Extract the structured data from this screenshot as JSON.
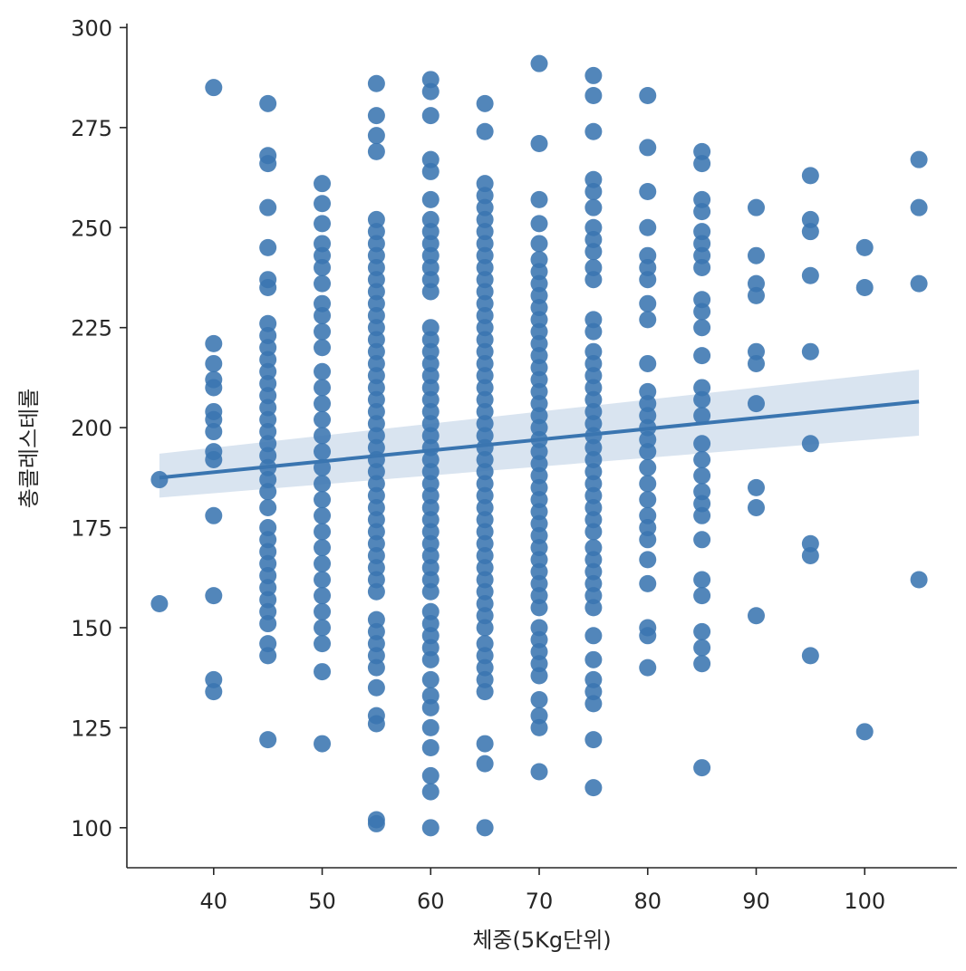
{
  "chart_data": {
    "type": "scatter",
    "title": "",
    "xlabel": "체중(5Kg단위)",
    "ylabel": "총콜레스테롤",
    "xlim": [
      32,
      108.5
    ],
    "ylim": [
      90,
      301
    ],
    "xticks": [
      40,
      50,
      60,
      70,
      80,
      90,
      100
    ],
    "yticks": [
      100,
      125,
      150,
      175,
      200,
      225,
      250,
      275,
      300
    ],
    "grid": false,
    "legend": "none",
    "colors": {
      "points": "#3a75b0",
      "line": "#3a75b0",
      "band": "#c9d8ea",
      "axis": "#262626"
    },
    "regression": {
      "x": [
        35,
        105
      ],
      "y": [
        187.5,
        206.5
      ],
      "ci_low": [
        182.5,
        198
      ],
      "ci_high": [
        193.5,
        214.5
      ]
    },
    "points": [
      [
        35,
        187
      ],
      [
        35,
        156
      ],
      [
        40,
        285
      ],
      [
        40,
        221
      ],
      [
        40,
        216
      ],
      [
        40,
        212
      ],
      [
        40,
        210
      ],
      [
        40,
        204
      ],
      [
        40,
        202
      ],
      [
        40,
        199
      ],
      [
        40,
        194
      ],
      [
        40,
        192
      ],
      [
        40,
        178
      ],
      [
        40,
        158
      ],
      [
        40,
        137
      ],
      [
        40,
        134
      ],
      [
        45,
        281
      ],
      [
        45,
        268
      ],
      [
        45,
        266
      ],
      [
        45,
        255
      ],
      [
        45,
        245
      ],
      [
        45,
        237
      ],
      [
        45,
        235
      ],
      [
        45,
        226
      ],
      [
        45,
        223
      ],
      [
        45,
        220
      ],
      [
        45,
        217
      ],
      [
        45,
        214
      ],
      [
        45,
        211
      ],
      [
        45,
        208
      ],
      [
        45,
        205
      ],
      [
        45,
        202
      ],
      [
        45,
        199
      ],
      [
        45,
        196
      ],
      [
        45,
        193
      ],
      [
        45,
        190
      ],
      [
        45,
        187
      ],
      [
        45,
        184
      ],
      [
        45,
        180
      ],
      [
        45,
        175
      ],
      [
        45,
        172
      ],
      [
        45,
        169
      ],
      [
        45,
        166
      ],
      [
        45,
        163
      ],
      [
        45,
        160
      ],
      [
        45,
        157
      ],
      [
        45,
        154
      ],
      [
        45,
        151
      ],
      [
        45,
        146
      ],
      [
        45,
        143
      ],
      [
        45,
        122
      ],
      [
        50,
        261
      ],
      [
        50,
        256
      ],
      [
        50,
        251
      ],
      [
        50,
        246
      ],
      [
        50,
        243
      ],
      [
        50,
        240
      ],
      [
        50,
        236
      ],
      [
        50,
        231
      ],
      [
        50,
        228
      ],
      [
        50,
        224
      ],
      [
        50,
        220
      ],
      [
        50,
        214
      ],
      [
        50,
        210
      ],
      [
        50,
        206
      ],
      [
        50,
        202
      ],
      [
        50,
        198
      ],
      [
        50,
        194
      ],
      [
        50,
        190
      ],
      [
        50,
        186
      ],
      [
        50,
        182
      ],
      [
        50,
        178
      ],
      [
        50,
        174
      ],
      [
        50,
        170
      ],
      [
        50,
        166
      ],
      [
        50,
        162
      ],
      [
        50,
        158
      ],
      [
        50,
        154
      ],
      [
        50,
        150
      ],
      [
        50,
        146
      ],
      [
        50,
        139
      ],
      [
        50,
        121
      ],
      [
        55,
        286
      ],
      [
        55,
        278
      ],
      [
        55,
        273
      ],
      [
        55,
        269
      ],
      [
        55,
        252
      ],
      [
        55,
        249
      ],
      [
        55,
        246
      ],
      [
        55,
        243
      ],
      [
        55,
        240
      ],
      [
        55,
        237
      ],
      [
        55,
        234
      ],
      [
        55,
        231
      ],
      [
        55,
        228
      ],
      [
        55,
        225
      ],
      [
        55,
        222
      ],
      [
        55,
        219
      ],
      [
        55,
        216
      ],
      [
        55,
        213
      ],
      [
        55,
        210
      ],
      [
        55,
        207
      ],
      [
        55,
        204
      ],
      [
        55,
        201
      ],
      [
        55,
        198
      ],
      [
        55,
        195
      ],
      [
        55,
        192
      ],
      [
        55,
        189
      ],
      [
        55,
        186
      ],
      [
        55,
        183
      ],
      [
        55,
        180
      ],
      [
        55,
        177
      ],
      [
        55,
        174
      ],
      [
        55,
        171
      ],
      [
        55,
        168
      ],
      [
        55,
        165
      ],
      [
        55,
        162
      ],
      [
        55,
        159
      ],
      [
        55,
        152
      ],
      [
        55,
        149
      ],
      [
        55,
        146
      ],
      [
        55,
        143
      ],
      [
        55,
        140
      ],
      [
        55,
        135
      ],
      [
        55,
        128
      ],
      [
        55,
        126
      ],
      [
        55,
        102
      ],
      [
        55,
        101
      ],
      [
        60,
        287
      ],
      [
        60,
        284
      ],
      [
        60,
        278
      ],
      [
        60,
        267
      ],
      [
        60,
        264
      ],
      [
        60,
        257
      ],
      [
        60,
        252
      ],
      [
        60,
        249
      ],
      [
        60,
        246
      ],
      [
        60,
        243
      ],
      [
        60,
        240
      ],
      [
        60,
        237
      ],
      [
        60,
        234
      ],
      [
        60,
        225
      ],
      [
        60,
        222
      ],
      [
        60,
        219
      ],
      [
        60,
        216
      ],
      [
        60,
        213
      ],
      [
        60,
        210
      ],
      [
        60,
        207
      ],
      [
        60,
        204
      ],
      [
        60,
        201
      ],
      [
        60,
        198
      ],
      [
        60,
        195
      ],
      [
        60,
        192
      ],
      [
        60,
        189
      ],
      [
        60,
        186
      ],
      [
        60,
        183
      ],
      [
        60,
        180
      ],
      [
        60,
        177
      ],
      [
        60,
        174
      ],
      [
        60,
        171
      ],
      [
        60,
        168
      ],
      [
        60,
        165
      ],
      [
        60,
        162
      ],
      [
        60,
        159
      ],
      [
        60,
        154
      ],
      [
        60,
        151
      ],
      [
        60,
        148
      ],
      [
        60,
        145
      ],
      [
        60,
        142
      ],
      [
        60,
        137
      ],
      [
        60,
        133
      ],
      [
        60,
        130
      ],
      [
        60,
        125
      ],
      [
        60,
        120
      ],
      [
        60,
        113
      ],
      [
        60,
        109
      ],
      [
        60,
        100
      ],
      [
        65,
        281
      ],
      [
        65,
        274
      ],
      [
        65,
        261
      ],
      [
        65,
        258
      ],
      [
        65,
        255
      ],
      [
        65,
        252
      ],
      [
        65,
        249
      ],
      [
        65,
        246
      ],
      [
        65,
        243
      ],
      [
        65,
        240
      ],
      [
        65,
        237
      ],
      [
        65,
        234
      ],
      [
        65,
        231
      ],
      [
        65,
        228
      ],
      [
        65,
        225
      ],
      [
        65,
        222
      ],
      [
        65,
        219
      ],
      [
        65,
        216
      ],
      [
        65,
        213
      ],
      [
        65,
        210
      ],
      [
        65,
        207
      ],
      [
        65,
        204
      ],
      [
        65,
        201
      ],
      [
        65,
        198
      ],
      [
        65,
        195
      ],
      [
        65,
        192
      ],
      [
        65,
        189
      ],
      [
        65,
        186
      ],
      [
        65,
        183
      ],
      [
        65,
        180
      ],
      [
        65,
        177
      ],
      [
        65,
        174
      ],
      [
        65,
        171
      ],
      [
        65,
        168
      ],
      [
        65,
        165
      ],
      [
        65,
        162
      ],
      [
        65,
        159
      ],
      [
        65,
        156
      ],
      [
        65,
        153
      ],
      [
        65,
        150
      ],
      [
        65,
        146
      ],
      [
        65,
        143
      ],
      [
        65,
        140
      ],
      [
        65,
        137
      ],
      [
        65,
        134
      ],
      [
        65,
        121
      ],
      [
        65,
        116
      ],
      [
        65,
        100
      ],
      [
        70,
        291
      ],
      [
        70,
        271
      ],
      [
        70,
        257
      ],
      [
        70,
        251
      ],
      [
        70,
        246
      ],
      [
        70,
        242
      ],
      [
        70,
        239
      ],
      [
        70,
        236
      ],
      [
        70,
        233
      ],
      [
        70,
        230
      ],
      [
        70,
        227
      ],
      [
        70,
        224
      ],
      [
        70,
        221
      ],
      [
        70,
        218
      ],
      [
        70,
        215
      ],
      [
        70,
        212
      ],
      [
        70,
        209
      ],
      [
        70,
        206
      ],
      [
        70,
        203
      ],
      [
        70,
        200
      ],
      [
        70,
        197
      ],
      [
        70,
        194
      ],
      [
        70,
        191
      ],
      [
        70,
        188
      ],
      [
        70,
        185
      ],
      [
        70,
        182
      ],
      [
        70,
        179
      ],
      [
        70,
        176
      ],
      [
        70,
        173
      ],
      [
        70,
        170
      ],
      [
        70,
        167
      ],
      [
        70,
        164
      ],
      [
        70,
        161
      ],
      [
        70,
        158
      ],
      [
        70,
        155
      ],
      [
        70,
        150
      ],
      [
        70,
        147
      ],
      [
        70,
        144
      ],
      [
        70,
        141
      ],
      [
        70,
        138
      ],
      [
        70,
        132
      ],
      [
        70,
        128
      ],
      [
        70,
        125
      ],
      [
        70,
        114
      ],
      [
        75,
        288
      ],
      [
        75,
        283
      ],
      [
        75,
        274
      ],
      [
        75,
        262
      ],
      [
        75,
        259
      ],
      [
        75,
        255
      ],
      [
        75,
        250
      ],
      [
        75,
        247
      ],
      [
        75,
        244
      ],
      [
        75,
        240
      ],
      [
        75,
        237
      ],
      [
        75,
        227
      ],
      [
        75,
        224
      ],
      [
        75,
        219
      ],
      [
        75,
        216
      ],
      [
        75,
        213
      ],
      [
        75,
        210
      ],
      [
        75,
        207
      ],
      [
        75,
        204
      ],
      [
        75,
        201
      ],
      [
        75,
        198
      ],
      [
        75,
        195
      ],
      [
        75,
        192
      ],
      [
        75,
        189
      ],
      [
        75,
        186
      ],
      [
        75,
        183
      ],
      [
        75,
        180
      ],
      [
        75,
        177
      ],
      [
        75,
        174
      ],
      [
        75,
        170
      ],
      [
        75,
        167
      ],
      [
        75,
        164
      ],
      [
        75,
        161
      ],
      [
        75,
        158
      ],
      [
        75,
        155
      ],
      [
        75,
        148
      ],
      [
        75,
        142
      ],
      [
        75,
        137
      ],
      [
        75,
        134
      ],
      [
        75,
        131
      ],
      [
        75,
        122
      ],
      [
        75,
        110
      ],
      [
        80,
        283
      ],
      [
        80,
        270
      ],
      [
        80,
        259
      ],
      [
        80,
        250
      ],
      [
        80,
        243
      ],
      [
        80,
        240
      ],
      [
        80,
        237
      ],
      [
        80,
        231
      ],
      [
        80,
        227
      ],
      [
        80,
        216
      ],
      [
        80,
        209
      ],
      [
        80,
        206
      ],
      [
        80,
        203
      ],
      [
        80,
        200
      ],
      [
        80,
        197
      ],
      [
        80,
        194
      ],
      [
        80,
        190
      ],
      [
        80,
        186
      ],
      [
        80,
        182
      ],
      [
        80,
        178
      ],
      [
        80,
        175
      ],
      [
        80,
        172
      ],
      [
        80,
        167
      ],
      [
        80,
        161
      ],
      [
        80,
        150
      ],
      [
        80,
        148
      ],
      [
        80,
        140
      ],
      [
        85,
        269
      ],
      [
        85,
        266
      ],
      [
        85,
        257
      ],
      [
        85,
        254
      ],
      [
        85,
        249
      ],
      [
        85,
        246
      ],
      [
        85,
        243
      ],
      [
        85,
        240
      ],
      [
        85,
        232
      ],
      [
        85,
        229
      ],
      [
        85,
        225
      ],
      [
        85,
        218
      ],
      [
        85,
        210
      ],
      [
        85,
        207
      ],
      [
        85,
        203
      ],
      [
        85,
        196
      ],
      [
        85,
        192
      ],
      [
        85,
        188
      ],
      [
        85,
        184
      ],
      [
        85,
        181
      ],
      [
        85,
        178
      ],
      [
        85,
        172
      ],
      [
        85,
        162
      ],
      [
        85,
        158
      ],
      [
        85,
        149
      ],
      [
        85,
        145
      ],
      [
        85,
        141
      ],
      [
        85,
        115
      ],
      [
        90,
        255
      ],
      [
        90,
        243
      ],
      [
        90,
        236
      ],
      [
        90,
        233
      ],
      [
        90,
        219
      ],
      [
        90,
        216
      ],
      [
        90,
        206
      ],
      [
        90,
        185
      ],
      [
        90,
        180
      ],
      [
        90,
        153
      ],
      [
        95,
        263
      ],
      [
        95,
        252
      ],
      [
        95,
        249
      ],
      [
        95,
        238
      ],
      [
        95,
        219
      ],
      [
        95,
        196
      ],
      [
        95,
        171
      ],
      [
        95,
        168
      ],
      [
        95,
        143
      ],
      [
        100,
        245
      ],
      [
        100,
        235
      ],
      [
        100,
        124
      ],
      [
        105,
        267
      ],
      [
        105,
        255
      ],
      [
        105,
        236
      ],
      [
        105,
        162
      ]
    ]
  }
}
